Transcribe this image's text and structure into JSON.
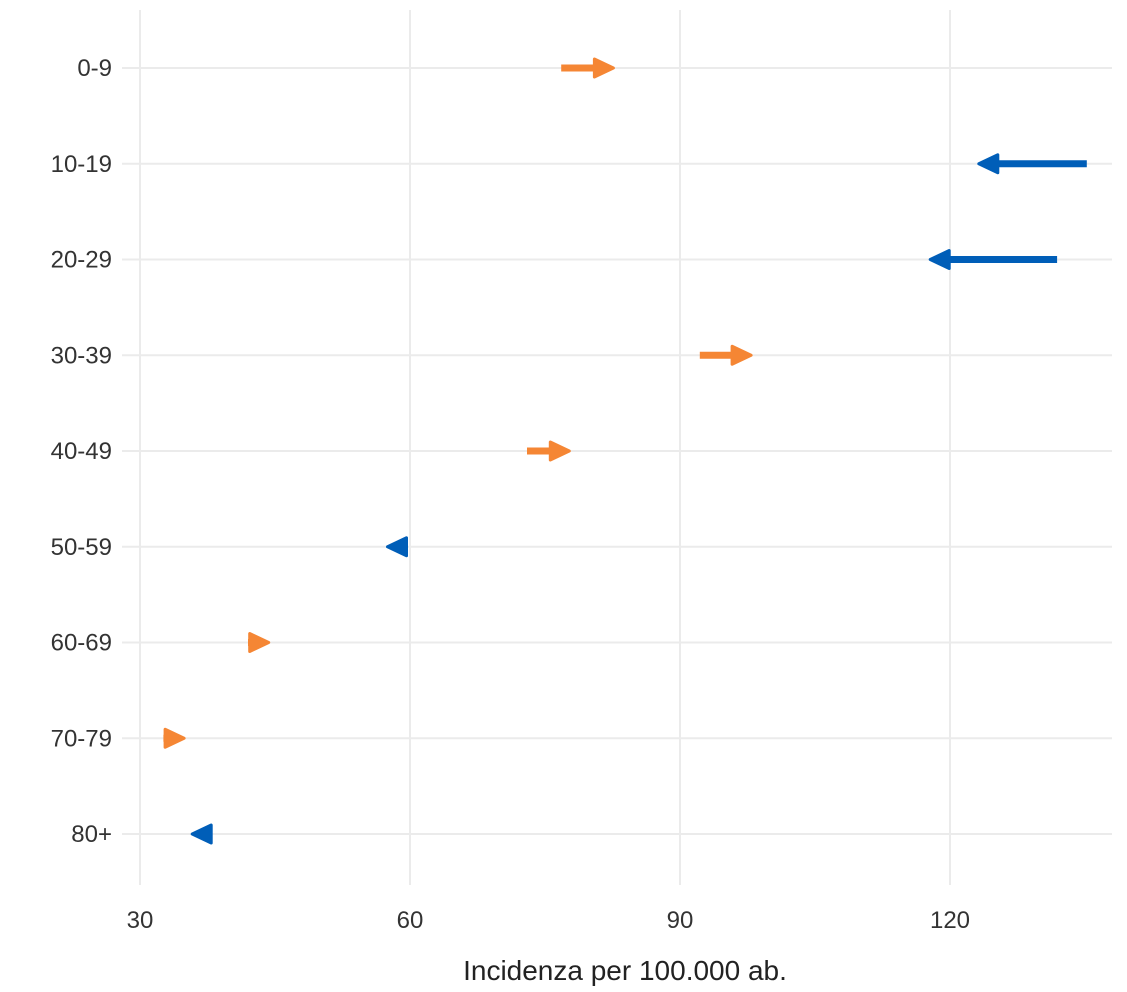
{
  "chart_data": {
    "type": "arrow-dumbbell",
    "title": "",
    "xlabel": "Incidenza per 100.000 ab.",
    "ylabel": "",
    "xlim": [
      28,
      138
    ],
    "x_ticks": [
      30,
      60,
      90,
      120
    ],
    "x_tick_labels": [
      "30",
      "60",
      "90",
      "120"
    ],
    "grid": true,
    "colors": {
      "increase": "#f58634",
      "decrease": "#005eb8"
    },
    "categories": [
      "0-9",
      "10-19",
      "20-29",
      "30-39",
      "40-49",
      "50-59",
      "60-69",
      "70-79",
      "80+"
    ],
    "rows": [
      {
        "label": "0-9",
        "from": 76.8,
        "to": 81.6,
        "direction": "increase"
      },
      {
        "label": "10-19",
        "from": 135.2,
        "to": 124.2,
        "direction": "decrease"
      },
      {
        "label": "20-29",
        "from": 131.9,
        "to": 118.8,
        "direction": "decrease"
      },
      {
        "label": "30-39",
        "from": 92.2,
        "to": 96.9,
        "direction": "increase"
      },
      {
        "label": "40-49",
        "from": 73.0,
        "to": 76.7,
        "direction": "increase"
      },
      {
        "label": "50-59",
        "from": 59.4,
        "to": 58.5,
        "direction": "decrease"
      },
      {
        "label": "60-69",
        "from": 42.0,
        "to": 43.3,
        "direction": "increase"
      },
      {
        "label": "70-79",
        "from": 32.6,
        "to": 33.9,
        "direction": "increase"
      },
      {
        "label": "80+",
        "from": 37.9,
        "to": 36.8,
        "direction": "decrease"
      }
    ]
  }
}
